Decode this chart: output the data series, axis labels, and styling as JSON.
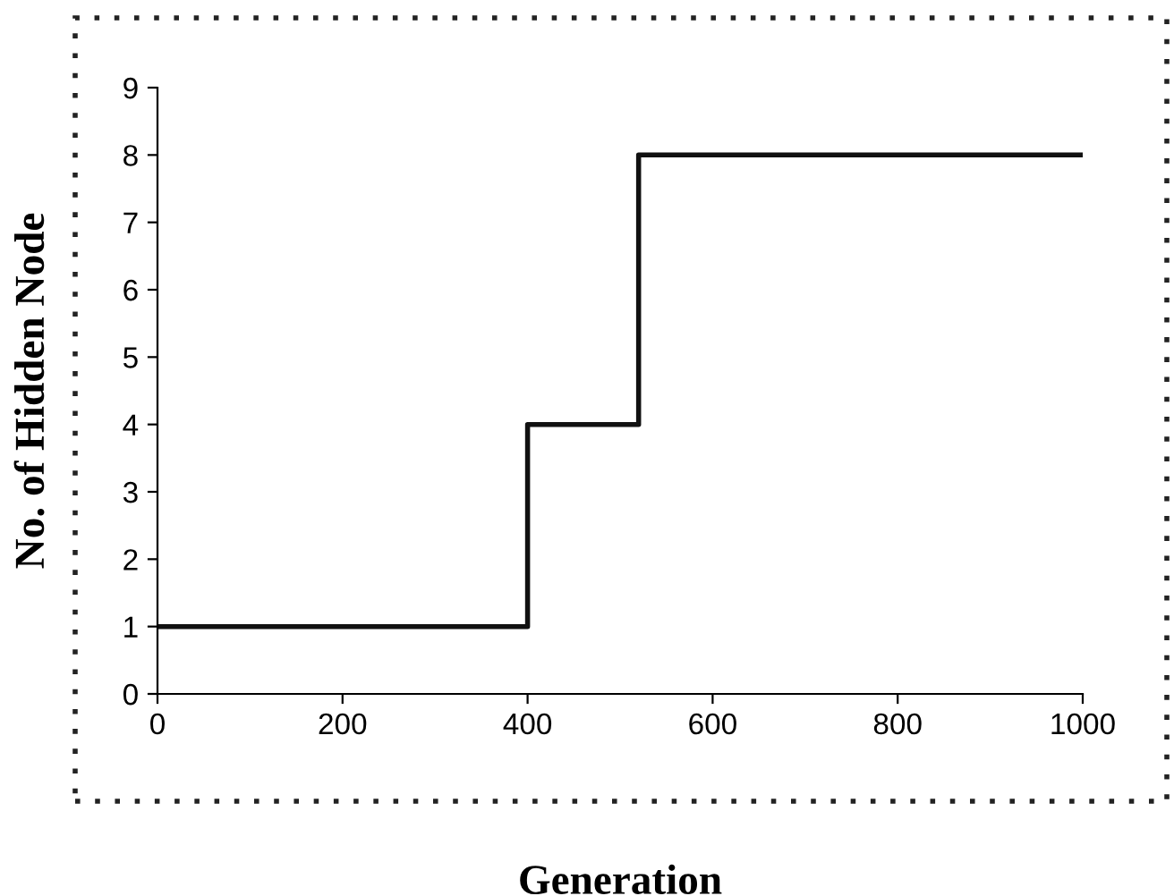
{
  "chart_data": {
    "type": "step",
    "xlabel": "Generation",
    "ylabel": "No. of Hidden Node",
    "x": [
      0,
      400,
      520,
      1000
    ],
    "series": [
      {
        "color": "#111111",
        "values": [
          1,
          4,
          8,
          8
        ]
      }
    ],
    "xlim": [
      0,
      1000
    ],
    "xticks": [
      0,
      200,
      400,
      600,
      800,
      1000
    ],
    "ylim": [
      0,
      9
    ],
    "yticks": [
      0,
      1,
      2,
      3,
      4,
      5,
      6,
      7,
      8,
      9
    ],
    "grid": false,
    "legend": false,
    "marker": "none",
    "line_style": "solid"
  }
}
